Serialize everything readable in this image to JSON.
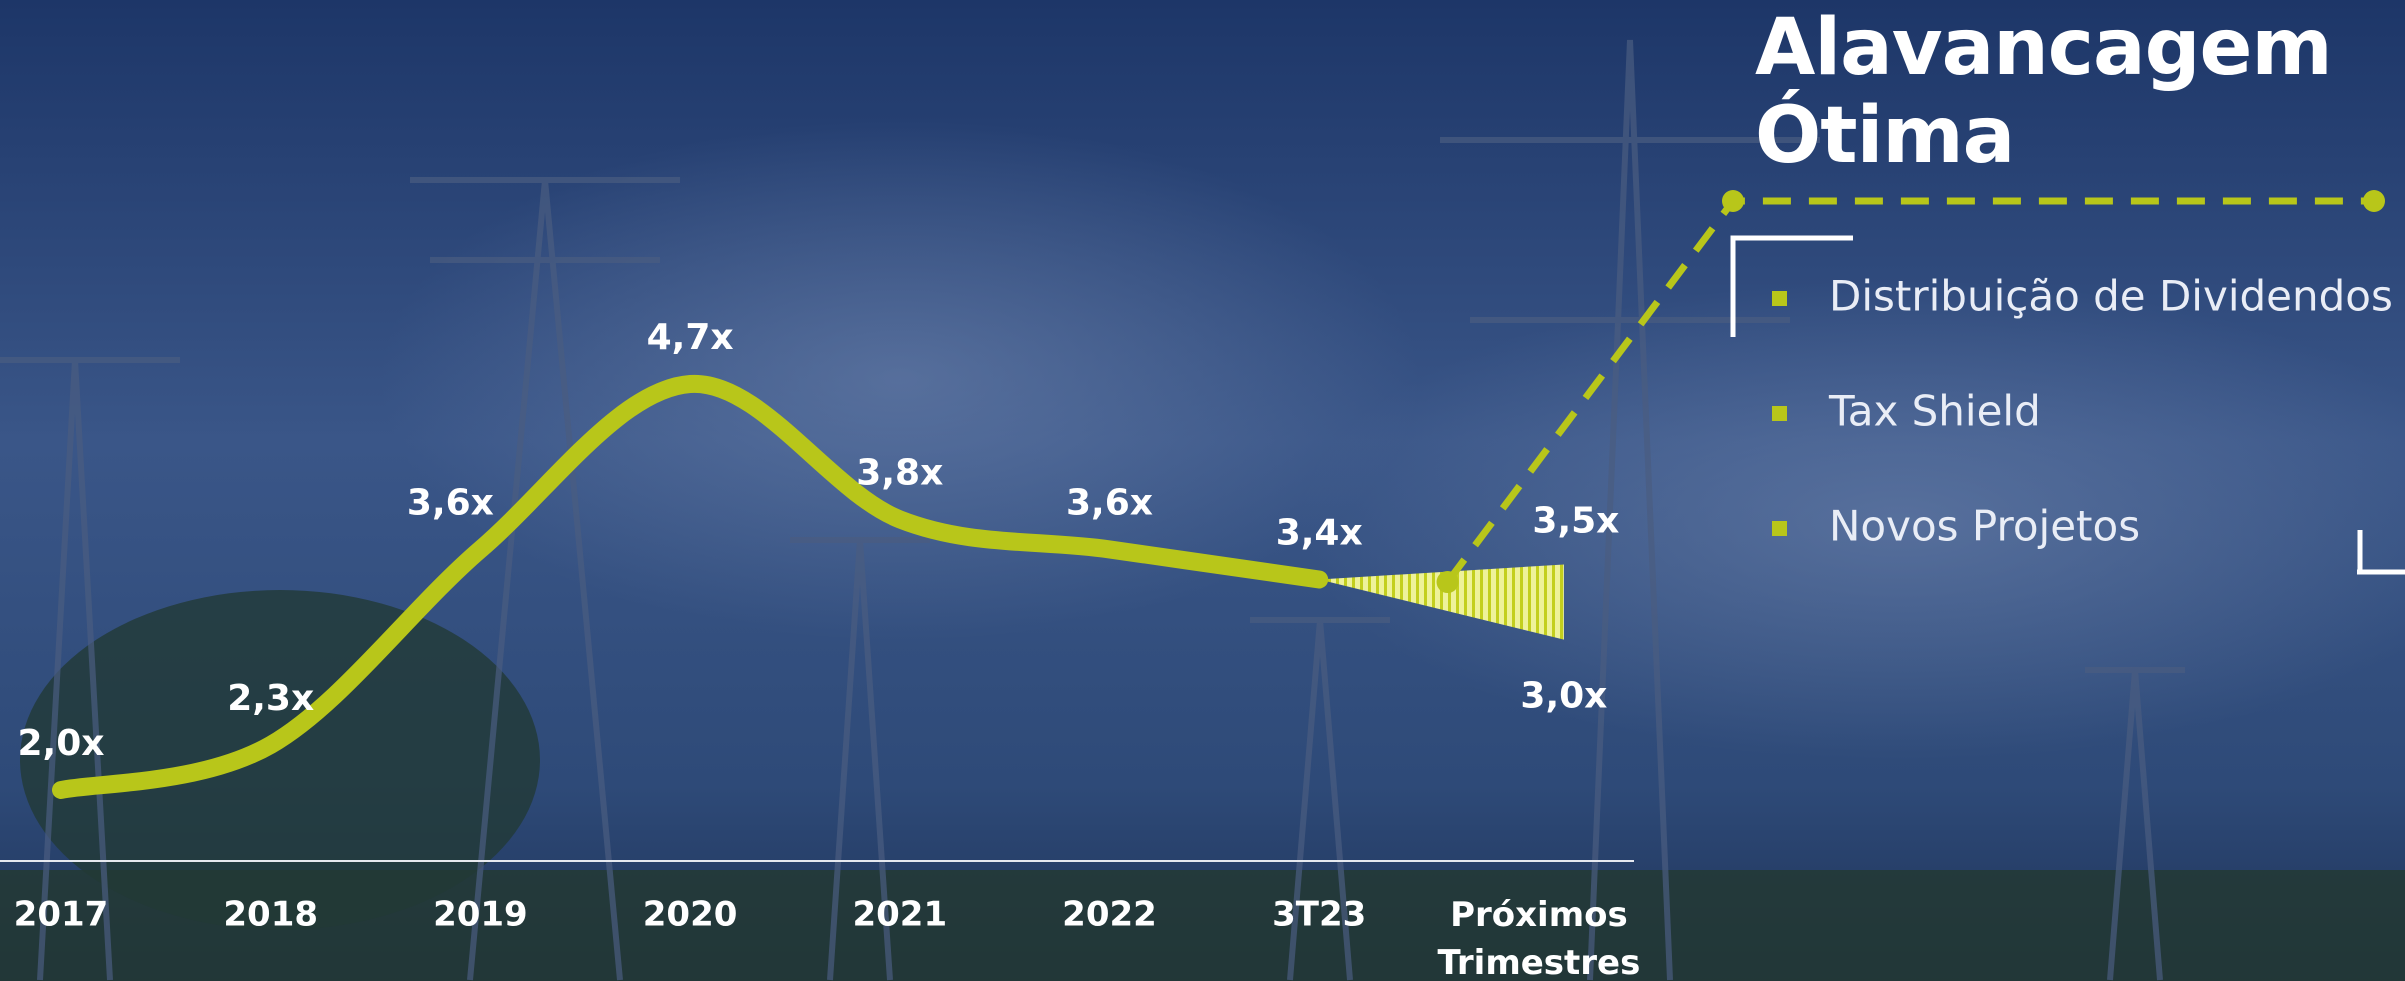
{
  "chart_data": {
    "type": "line",
    "title": "Alavancagem Ótima",
    "categories": [
      "2017",
      "2018",
      "2019",
      "2020",
      "2021",
      "2022",
      "3T23",
      "Próximos Trimestres"
    ],
    "values": [
      2.0,
      2.3,
      3.6,
      4.7,
      3.8,
      3.6,
      3.4,
      null
    ],
    "value_labels": [
      "2,0x",
      "2,3x",
      "3,6x",
      "4,7x",
      "3,8x",
      "3,6x",
      "3,4x",
      null
    ],
    "projection": {
      "high": 3.5,
      "high_label": "3,5x",
      "low": 3.0,
      "low_label": "3,0x"
    },
    "color": "#b8c61a",
    "annotations": [
      "Distribuição de Dividendos",
      "Tax Shield",
      "Novos Projetos"
    ]
  }
}
